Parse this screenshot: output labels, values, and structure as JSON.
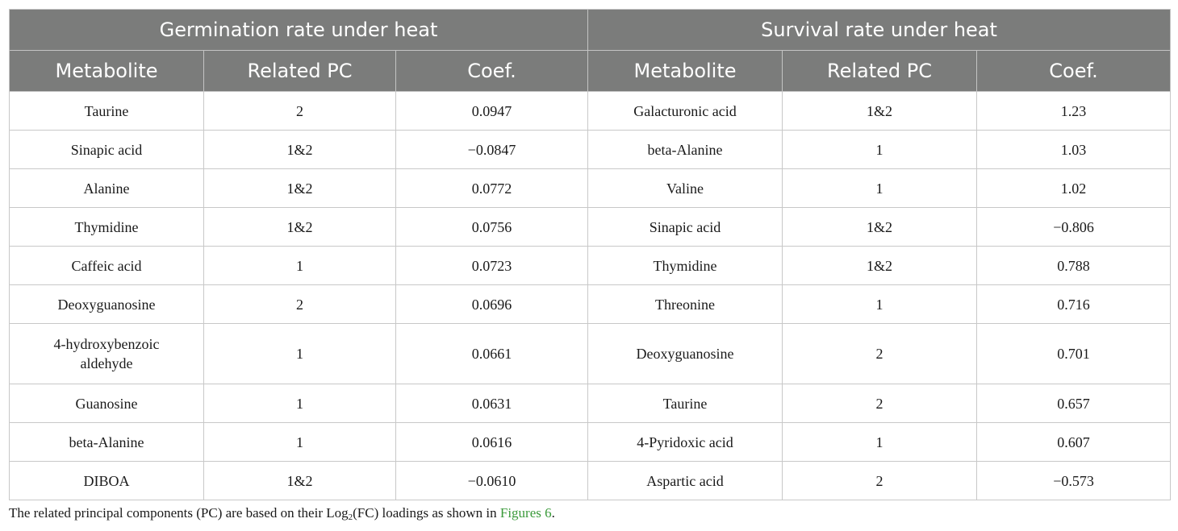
{
  "table": {
    "groups": [
      "Germination rate under heat",
      "Survival rate under heat"
    ],
    "columns": [
      "Metabolite",
      "Related PC",
      "Coef.",
      "Metabolite",
      "Related PC",
      "Coef."
    ],
    "rows": [
      [
        "Taurine",
        "2",
        "0.0947",
        "Galacturonic acid",
        "1&2",
        "1.23"
      ],
      [
        "Sinapic acid",
        "1&2",
        "−0.0847",
        "beta-Alanine",
        "1",
        "1.03"
      ],
      [
        "Alanine",
        "1&2",
        "0.0772",
        "Valine",
        "1",
        "1.02"
      ],
      [
        "Thymidine",
        "1&2",
        "0.0756",
        "Sinapic acid",
        "1&2",
        "−0.806"
      ],
      [
        "Caffeic acid",
        "1",
        "0.0723",
        "Thymidine",
        "1&2",
        "0.788"
      ],
      [
        "Deoxyguanosine",
        "2",
        "0.0696",
        "Threonine",
        "1",
        "0.716"
      ],
      [
        "4-hydroxybenzoic aldehyde",
        "1",
        "0.0661",
        "Deoxyguanosine",
        "2",
        "0.701"
      ],
      [
        "Guanosine",
        "1",
        "0.0631",
        "Taurine",
        "2",
        "0.657"
      ],
      [
        "beta-Alanine",
        "1",
        "0.0616",
        "4-Pyridoxic acid",
        "1",
        "0.607"
      ],
      [
        "DIBOA",
        "1&2",
        "−0.0610",
        "Aspartic acid",
        "2",
        "−0.573"
      ]
    ]
  },
  "footnote": {
    "before_sub": "The related principal components (PC) are based on their Log",
    "sub": "2",
    "after_sub": "(FC) loadings as shown in ",
    "link": "Figures 6",
    "end": "."
  },
  "colors": {
    "header_bg": "#7b7c7b",
    "header_text": "#ffffff",
    "link": "#3a9a3a"
  }
}
